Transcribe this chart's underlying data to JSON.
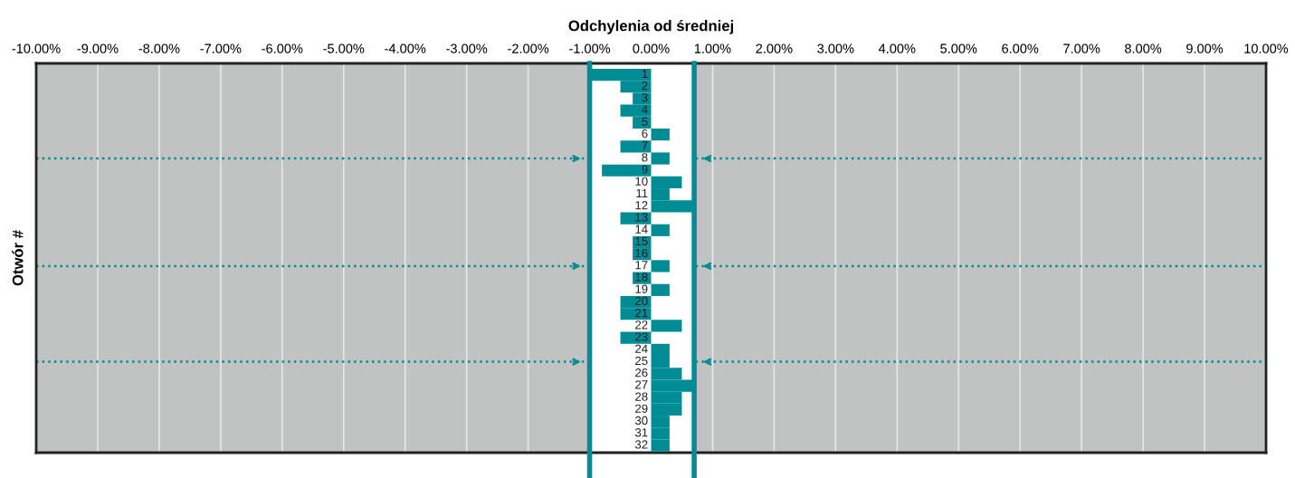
{
  "chart_data": {
    "type": "bar",
    "orientation": "horizontal",
    "xlabel": "Odchylenia od średniej",
    "ylabel": "Otwór #",
    "categories": [
      "1",
      "2",
      "3",
      "4",
      "5",
      "6",
      "7",
      "8",
      "9",
      "10",
      "11",
      "12",
      "13",
      "14",
      "15",
      "16",
      "17",
      "18",
      "19",
      "20",
      "21",
      "22",
      "23",
      "24",
      "25",
      "26",
      "27",
      "28",
      "29",
      "30",
      "31",
      "32"
    ],
    "values": [
      -1.0,
      -0.5,
      -0.3,
      -0.5,
      -0.3,
      0.3,
      -0.5,
      0.3,
      -0.8,
      0.5,
      0.3,
      0.7,
      -0.5,
      0.3,
      -0.3,
      -0.3,
      0.3,
      -0.3,
      0.3,
      -0.5,
      -0.5,
      0.5,
      -0.5,
      0.3,
      0.3,
      0.5,
      0.7,
      0.5,
      0.5,
      0.3,
      0.3,
      0.3
    ],
    "color": "#008c95",
    "xlim": [
      -10,
      10
    ],
    "xticks": [
      {
        "value": -10,
        "label": "-10.00%"
      },
      {
        "value": -9,
        "label": "-9.00%"
      },
      {
        "value": -8,
        "label": "-8.00%"
      },
      {
        "value": -7,
        "label": "-7.00%"
      },
      {
        "value": -6,
        "label": "-6.00%"
      },
      {
        "value": -5,
        "label": "-5.00%"
      },
      {
        "value": -4,
        "label": "-4.00%"
      },
      {
        "value": -3,
        "label": "-3.00%"
      },
      {
        "value": -2,
        "label": "-2.00%"
      },
      {
        "value": -1,
        "label": "-1.00%"
      },
      {
        "value": 0,
        "label": "0.00%"
      },
      {
        "value": 1,
        "label": "1.00%"
      },
      {
        "value": 2,
        "label": "2.00%"
      },
      {
        "value": 3,
        "label": "3.00%"
      },
      {
        "value": 4,
        "label": "4.00%"
      },
      {
        "value": 5,
        "label": "5.00%"
      },
      {
        "value": 6,
        "label": "6.00%"
      },
      {
        "value": 7,
        "label": "7.00%"
      },
      {
        "value": 8,
        "label": "8.00%"
      },
      {
        "value": 9,
        "label": "9.00%"
      },
      {
        "value": 10,
        "label": "10.00%"
      }
    ],
    "bands": [
      {
        "axis": "x",
        "from": -1.0,
        "to": 0.7,
        "color": "#ffffff"
      }
    ],
    "ref_lines": [
      {
        "axis": "y",
        "value": "8",
        "color": "#008c95",
        "line_style": "dotted"
      },
      {
        "axis": "y",
        "value": "17",
        "color": "#008c95",
        "line_style": "dotted"
      },
      {
        "axis": "y",
        "value": "25",
        "color": "#008c95",
        "line_style": "dotted"
      },
      {
        "axis": "x",
        "value": -1.0,
        "color": "#008c95",
        "line_style": "solid"
      },
      {
        "axis": "x",
        "value": 0.7,
        "color": "#008c95",
        "line_style": "solid"
      }
    ],
    "grid": "x",
    "tick_labels": "x",
    "legend": false
  }
}
